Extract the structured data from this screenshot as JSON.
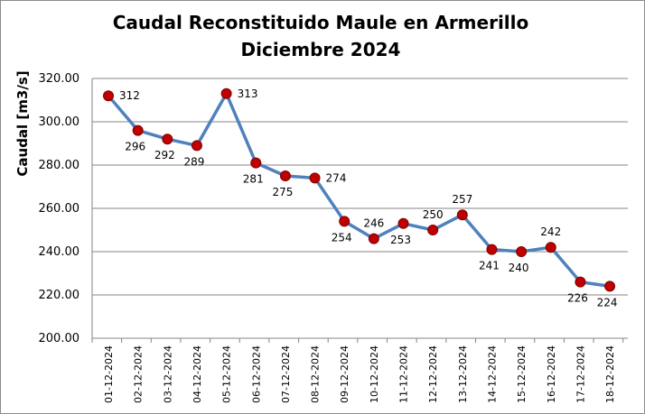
{
  "chart_data": {
    "type": "line",
    "title": "Caudal Reconstituido Maule en Armerillo",
    "subtitle": "Diciembre 2024",
    "xlabel": "",
    "ylabel": "Caudal [m3/s]",
    "ylim": [
      200,
      320
    ],
    "yticks": [
      "200.00",
      "220.00",
      "240.00",
      "260.00",
      "280.00",
      "300.00",
      "320.00"
    ],
    "grid": true,
    "legend": "none",
    "categories": [
      "01-12-2024",
      "02-12-2024",
      "03-12-2024",
      "04-12-2024",
      "05-12-2024",
      "06-12-2024",
      "07-12-2024",
      "08-12-2024",
      "09-12-2024",
      "10-12-2024",
      "11-12-2024",
      "12-12-2024",
      "13-12-2024",
      "14-12-2024",
      "15-12-2024",
      "16-12-2024",
      "17-12-2024",
      "18-12-2024"
    ],
    "series": [
      {
        "values": [
          312,
          296,
          292,
          289,
          313,
          281,
          275,
          274,
          254,
          246,
          253,
          250,
          257,
          241,
          240,
          242,
          226,
          224
        ],
        "labels": [
          "312",
          "296",
          "292",
          "289",
          "313",
          "281",
          "275",
          "274",
          "254",
          "246",
          "253",
          "250",
          "257",
          "241",
          "240",
          "242",
          "226",
          "224"
        ],
        "line_color": "#4f81bd",
        "marker_color": "#c00000"
      }
    ]
  }
}
